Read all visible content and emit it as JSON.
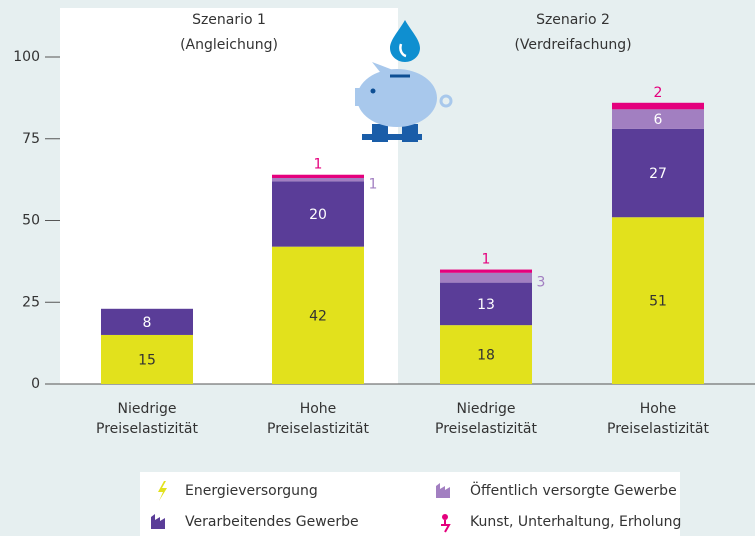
{
  "chart_data": {
    "type": "stacked_bar",
    "groups": [
      {
        "title": "Szenario 1",
        "subtitle": "(Angleichung)"
      },
      {
        "title": "Szenario 2",
        "subtitle": "(Verdreifachung)"
      }
    ],
    "categories": [
      [
        "Niedrige",
        "Preiselastizität"
      ],
      [
        "Hohe",
        "Preiselastizität"
      ],
      [
        "Niedrige",
        "Preiselastizität"
      ],
      [
        "Hohe",
        "Preiselastizität"
      ]
    ],
    "series": [
      {
        "name": "Energieversorgung",
        "color": "#e2e11c",
        "values": [
          15,
          42,
          18,
          51
        ]
      },
      {
        "name": "Verarbeitendes Gewerbe",
        "color": "#5a3d98",
        "values": [
          8,
          20,
          13,
          27
        ]
      },
      {
        "name": "Öffentlich versorgte Gewerbe",
        "color": "#a27fc1",
        "values": [
          null,
          1,
          3,
          6
        ]
      },
      {
        "name": "Kunst, Unterhaltung, Erholung",
        "color": "#e4007d",
        "values": [
          null,
          1,
          1,
          2
        ]
      }
    ],
    "ylim": [
      0,
      100
    ],
    "yticks": [
      0,
      25,
      50,
      75,
      100
    ]
  }
}
